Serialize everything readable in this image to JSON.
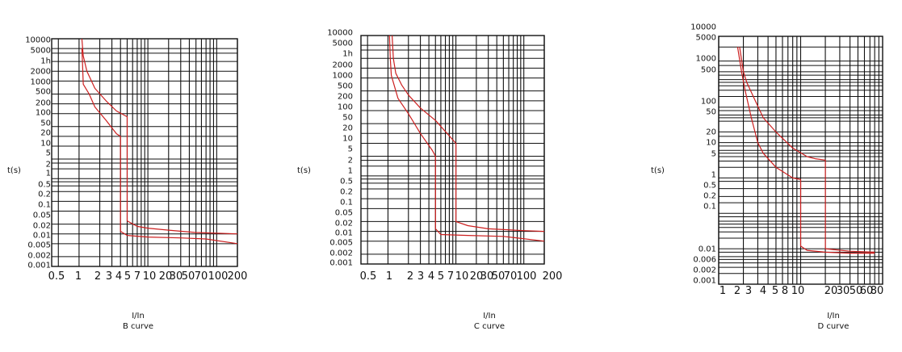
{
  "charts": [
    {
      "id": "b",
      "type": "line",
      "title": "",
      "xlabel": "I/In",
      "subtitle": "B curve",
      "ylabel": "t(s)",
      "x_tick_labels": [
        "0.5",
        "1",
        "2",
        "3",
        "4",
        "5",
        "7",
        "10",
        "20",
        "30",
        "50",
        "70",
        "100",
        "200"
      ],
      "y_tick_labels": [
        "10000",
        "5000",
        "1h",
        "2000",
        "1000",
        "500",
        "200",
        "100",
        "50",
        "20",
        "10",
        "5",
        "2",
        "1",
        "0.5",
        "0.2",
        "0.1",
        "0.05",
        "0.02",
        "0.01",
        "0.005",
        "0.002",
        "0.001"
      ],
      "series": [
        {
          "points": [
            [
              1.1,
              10000
            ],
            [
              1.15,
              3000
            ],
            [
              1.3,
              1000
            ],
            [
              1.7,
              300
            ],
            [
              2.5,
              120
            ],
            [
              3.5,
              60
            ],
            [
              5,
              40
            ],
            [
              5,
              0.025
            ],
            [
              7,
              0.017
            ],
            [
              10,
              0.015
            ],
            [
              20,
              0.013
            ],
            [
              50,
              0.011
            ],
            [
              200,
              0.01
            ]
          ]
        },
        {
          "points": [
            [
              1.1,
              5000
            ],
            [
              1.12,
              2000
            ],
            [
              1.15,
              400
            ],
            [
              1.4,
              200
            ],
            [
              1.7,
              80
            ],
            [
              2.5,
              30
            ],
            [
              3.5,
              12
            ],
            [
              4,
              10
            ],
            [
              4,
              0.012
            ],
            [
              5,
              0.009
            ],
            [
              10,
              0.008
            ],
            [
              30,
              0.0075
            ],
            [
              70,
              0.007
            ],
            [
              200,
              0.005
            ]
          ]
        }
      ]
    },
    {
      "id": "c",
      "type": "line",
      "title": "",
      "xlabel": "I/In",
      "subtitle": "C curve",
      "ylabel": "t(s)",
      "x_tick_labels": [
        "0.5",
        "1",
        "2",
        "3",
        "4",
        "5",
        "7",
        "10",
        "20",
        "30",
        "50",
        "70",
        "100",
        "200"
      ],
      "y_tick_labels": [
        "10000",
        "5000",
        "1h",
        "2000",
        "1000",
        "500",
        "200",
        "100",
        "50",
        "20",
        "10",
        "5",
        "2",
        "1",
        "0.5",
        "0.2",
        "0.1",
        "0.05",
        "0.02",
        "0.01",
        "0.005",
        "0.002",
        "0.001"
      ],
      "series": [
        {
          "points": [
            [
              1.15,
              10000
            ],
            [
              1.2,
              2000
            ],
            [
              1.3,
              700
            ],
            [
              1.6,
              300
            ],
            [
              2,
              150
            ],
            [
              3,
              60
            ],
            [
              5,
              25
            ],
            [
              10,
              5
            ],
            [
              10,
              0.02
            ],
            [
              15,
              0.015
            ],
            [
              30,
              0.012
            ],
            [
              100,
              0.0105
            ],
            [
              200,
              0.01
            ]
          ]
        },
        {
          "points": [
            [
              1.05,
              10000
            ],
            [
              1.08,
              2000
            ],
            [
              1.12,
              600
            ],
            [
              1.4,
              120
            ],
            [
              2,
              40
            ],
            [
              3,
              10
            ],
            [
              4.5,
              3
            ],
            [
              5,
              2
            ],
            [
              5,
              0.012
            ],
            [
              6,
              0.008
            ],
            [
              15,
              0.0075
            ],
            [
              50,
              0.007
            ],
            [
              200,
              0.005
            ]
          ]
        }
      ]
    },
    {
      "id": "d",
      "type": "line",
      "title": "",
      "xlabel": "I/In",
      "subtitle": "D curve",
      "ylabel": "t(s)",
      "x_tick_labels": [
        "1",
        "2",
        "3",
        "4",
        "5",
        "8",
        "10",
        "20",
        "30",
        "50",
        "60",
        "80"
      ],
      "y_tick_labels": [
        "10000",
        "5000",
        "1000",
        "500",
        "100",
        "50",
        "20",
        "10",
        "5",
        "1",
        "0.5",
        "0.2",
        "0.1",
        "0.01",
        "0.006",
        "0.002",
        "0.001"
      ],
      "series": [
        {
          "points": [
            [
              1.8,
              5000
            ],
            [
              2,
              1000
            ],
            [
              2.2,
              500
            ],
            [
              2.8,
              150
            ],
            [
              3.5,
              50
            ],
            [
              5,
              20
            ],
            [
              8,
              7
            ],
            [
              12,
              4
            ],
            [
              15,
              3.5
            ],
            [
              20,
              3.2
            ],
            [
              20,
              0.01
            ],
            [
              25,
              0.0095
            ],
            [
              40,
              0.0085
            ],
            [
              80,
              0.008
            ]
          ]
        },
        {
          "points": [
            [
              1.7,
              5000
            ],
            [
              1.9,
              1000
            ],
            [
              2.1,
              300
            ],
            [
              2.5,
              50
            ],
            [
              3,
              10
            ],
            [
              3.5,
              5
            ],
            [
              5,
              2
            ],
            [
              8,
              1
            ],
            [
              10,
              0.9
            ],
            [
              10,
              0.012
            ],
            [
              12,
              0.009
            ],
            [
              20,
              0.008
            ],
            [
              40,
              0.0075
            ],
            [
              80,
              0.0075
            ]
          ]
        }
      ]
    }
  ],
  "colors": {
    "curve": "#cc1f1f",
    "grid": "#111111"
  }
}
